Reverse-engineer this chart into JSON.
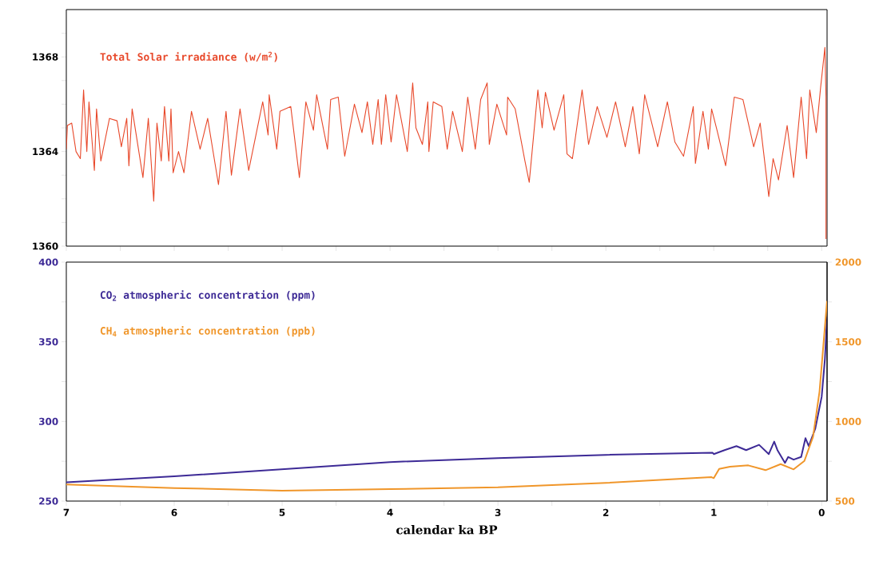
{
  "chart_data": [
    {
      "type": "line",
      "legend": "top left",
      "tick_labels": "y",
      "xlim": [
        7,
        -0.05
      ],
      "xticks": [
        7,
        6.5,
        6,
        5.5,
        5,
        4.5,
        4,
        3.5,
        3,
        2.5,
        2,
        1.5,
        1,
        0.5,
        0
      ],
      "ylim": [
        1360,
        1370
      ],
      "yticks": [
        1360,
        {
          "value": 1361,
          "label": null
        },
        {
          "value": 1362,
          "label": null
        },
        {
          "value": 1363,
          "label": null
        },
        1364,
        {
          "value": 1365,
          "label": null
        },
        {
          "value": 1366,
          "label": null
        },
        {
          "value": 1367,
          "label": null
        },
        1368,
        {
          "value": 1369,
          "label": null
        }
      ],
      "series": [
        {
          "name": "Total Solar irradiance (w/m$^{2}$)",
          "color": "#e8482a",
          "x": [
            7.0,
            6.99,
            6.95,
            6.91,
            6.87,
            6.84,
            6.81,
            6.79,
            6.74,
            6.72,
            6.68,
            6.6,
            6.53,
            6.49,
            6.44,
            6.42,
            6.39,
            6.29,
            6.24,
            6.19,
            6.16,
            6.12,
            6.09,
            6.05,
            6.03,
            6.01,
            5.96,
            5.91,
            5.84,
            5.76,
            5.69,
            5.59,
            5.52,
            5.47,
            5.39,
            5.31,
            5.18,
            5.13,
            5.12,
            5.05,
            5.02,
            4.92,
            4.84,
            4.78,
            4.71,
            4.68,
            4.58,
            4.55,
            4.48,
            4.42,
            4.33,
            4.26,
            4.21,
            4.16,
            4.11,
            4.08,
            4.04,
            3.99,
            3.94,
            3.84,
            3.79,
            3.76,
            3.7,
            3.65,
            3.64,
            3.6,
            3.52,
            3.47,
            3.42,
            3.33,
            3.28,
            3.21,
            3.16,
            3.1,
            3.08,
            3.01,
            2.92,
            2.91,
            2.84,
            2.75,
            2.71,
            2.63,
            2.59,
            2.56,
            2.48,
            2.39,
            2.36,
            2.31,
            2.22,
            2.16,
            2.08,
            1.99,
            1.91,
            1.82,
            1.75,
            1.69,
            1.64,
            1.52,
            1.43,
            1.36,
            1.28,
            1.19,
            1.17,
            1.1,
            1.05,
            1.02,
            0.97,
            0.89,
            0.81,
            0.73,
            0.63,
            0.57,
            0.49,
            0.45,
            0.4,
            0.32,
            0.26,
            0.19,
            0.14,
            0.11,
            0.05,
            0.01,
            -0.03,
            -0.04,
            -0.04
          ],
          "values": [
            1364.1,
            1365.1,
            1365.2,
            1364.0,
            1363.7,
            1366.6,
            1364.0,
            1366.1,
            1363.2,
            1365.8,
            1363.6,
            1365.4,
            1365.3,
            1364.2,
            1365.4,
            1363.4,
            1365.8,
            1362.9,
            1365.4,
            1361.9,
            1365.2,
            1363.6,
            1365.9,
            1363.6,
            1365.8,
            1363.1,
            1364.0,
            1363.1,
            1365.7,
            1364.1,
            1365.4,
            1362.6,
            1365.7,
            1363.0,
            1365.8,
            1363.2,
            1366.1,
            1364.7,
            1366.4,
            1364.1,
            1365.7,
            1365.9,
            1362.9,
            1366.1,
            1364.9,
            1366.4,
            1364.1,
            1366.2,
            1366.3,
            1363.8,
            1366.0,
            1364.8,
            1366.1,
            1364.3,
            1366.2,
            1364.3,
            1366.4,
            1364.4,
            1366.4,
            1364.0,
            1366.9,
            1365.0,
            1364.3,
            1366.1,
            1364.0,
            1366.1,
            1365.9,
            1364.1,
            1365.7,
            1364.0,
            1366.3,
            1364.1,
            1366.2,
            1366.9,
            1364.3,
            1366.0,
            1364.7,
            1366.3,
            1365.8,
            1363.6,
            1362.7,
            1366.6,
            1365.0,
            1366.5,
            1364.9,
            1366.4,
            1363.9,
            1363.7,
            1366.6,
            1364.3,
            1365.9,
            1364.6,
            1366.1,
            1364.2,
            1365.9,
            1363.9,
            1366.4,
            1364.2,
            1366.1,
            1364.4,
            1363.8,
            1365.9,
            1363.5,
            1365.7,
            1364.1,
            1365.8,
            1364.9,
            1363.4,
            1366.3,
            1366.2,
            1364.2,
            1365.2,
            1362.1,
            1363.7,
            1362.8,
            1365.1,
            1362.9,
            1366.3,
            1363.7,
            1366.6,
            1364.8,
            1366.7,
            1368.4,
            1366.3,
            1360.3
          ]
        }
      ]
    },
    {
      "type": "line",
      "legend": "top left",
      "xlabel": "calendar ka BP",
      "xlim": [
        7,
        -0.05
      ],
      "xticks": [
        7,
        {
          "value": 6.5,
          "label": null
        },
        6,
        {
          "value": 5.5,
          "label": null
        },
        5,
        {
          "value": 4.5,
          "label": null
        },
        4,
        {
          "value": 3.5,
          "label": null
        },
        3,
        {
          "value": 2.5,
          "label": null
        },
        2,
        {
          "value": 1.5,
          "label": null
        },
        1,
        {
          "value": 0.5,
          "label": null
        },
        0
      ],
      "ylim": [
        250,
        400
      ],
      "yticks": [
        250,
        {
          "value": 275,
          "label": null
        },
        300,
        {
          "value": 325,
          "label": null
        },
        350,
        {
          "value": 375,
          "label": null
        },
        400
      ],
      "y2lim": [
        500,
        2000
      ],
      "y2ticks": [
        500,
        {
          "value": 750,
          "label": null
        },
        1000,
        {
          "value": 1250,
          "label": null
        },
        1500,
        {
          "value": 1750,
          "label": null
        },
        2000
      ],
      "series": [
        {
          "name": "CO$_{2}$ atmospheric concentration (ppm)",
          "color": "#3d2a96",
          "x": [
            7,
            6,
            5,
            4,
            3,
            2,
            1.01,
            1.0,
            0.9,
            0.79,
            0.7,
            0.58,
            0.49,
            0.44,
            0.41,
            0.34,
            0.31,
            0.26,
            0.19,
            0.15,
            0.12,
            0.06,
            0.0,
            -0.03,
            -0.05
          ],
          "values": [
            261.8,
            265.5,
            270,
            274.5,
            277,
            279,
            280.3,
            279.5,
            282,
            284.5,
            282,
            285.3,
            279.5,
            287.3,
            282,
            274,
            277.7,
            276,
            277.7,
            289.5,
            284.5,
            295.3,
            315.4,
            339,
            365.7
          ]
        },
        {
          "name": "CH$_{4}$ atmospheric concentration (ppb)",
          "color": "#f0962a",
          "axis": "y2",
          "x": [
            7,
            6,
            5,
            4,
            3,
            2,
            1.02,
            1.0,
            0.95,
            0.85,
            0.68,
            0.52,
            0.38,
            0.26,
            0.16,
            0.08,
            0.02,
            -0.05
          ],
          "values": [
            604,
            582,
            565,
            575,
            586,
            614,
            650,
            644,
            702,
            716,
            724,
            694,
            732,
            699,
            752,
            903,
            1187,
            1756
          ]
        }
      ]
    }
  ]
}
